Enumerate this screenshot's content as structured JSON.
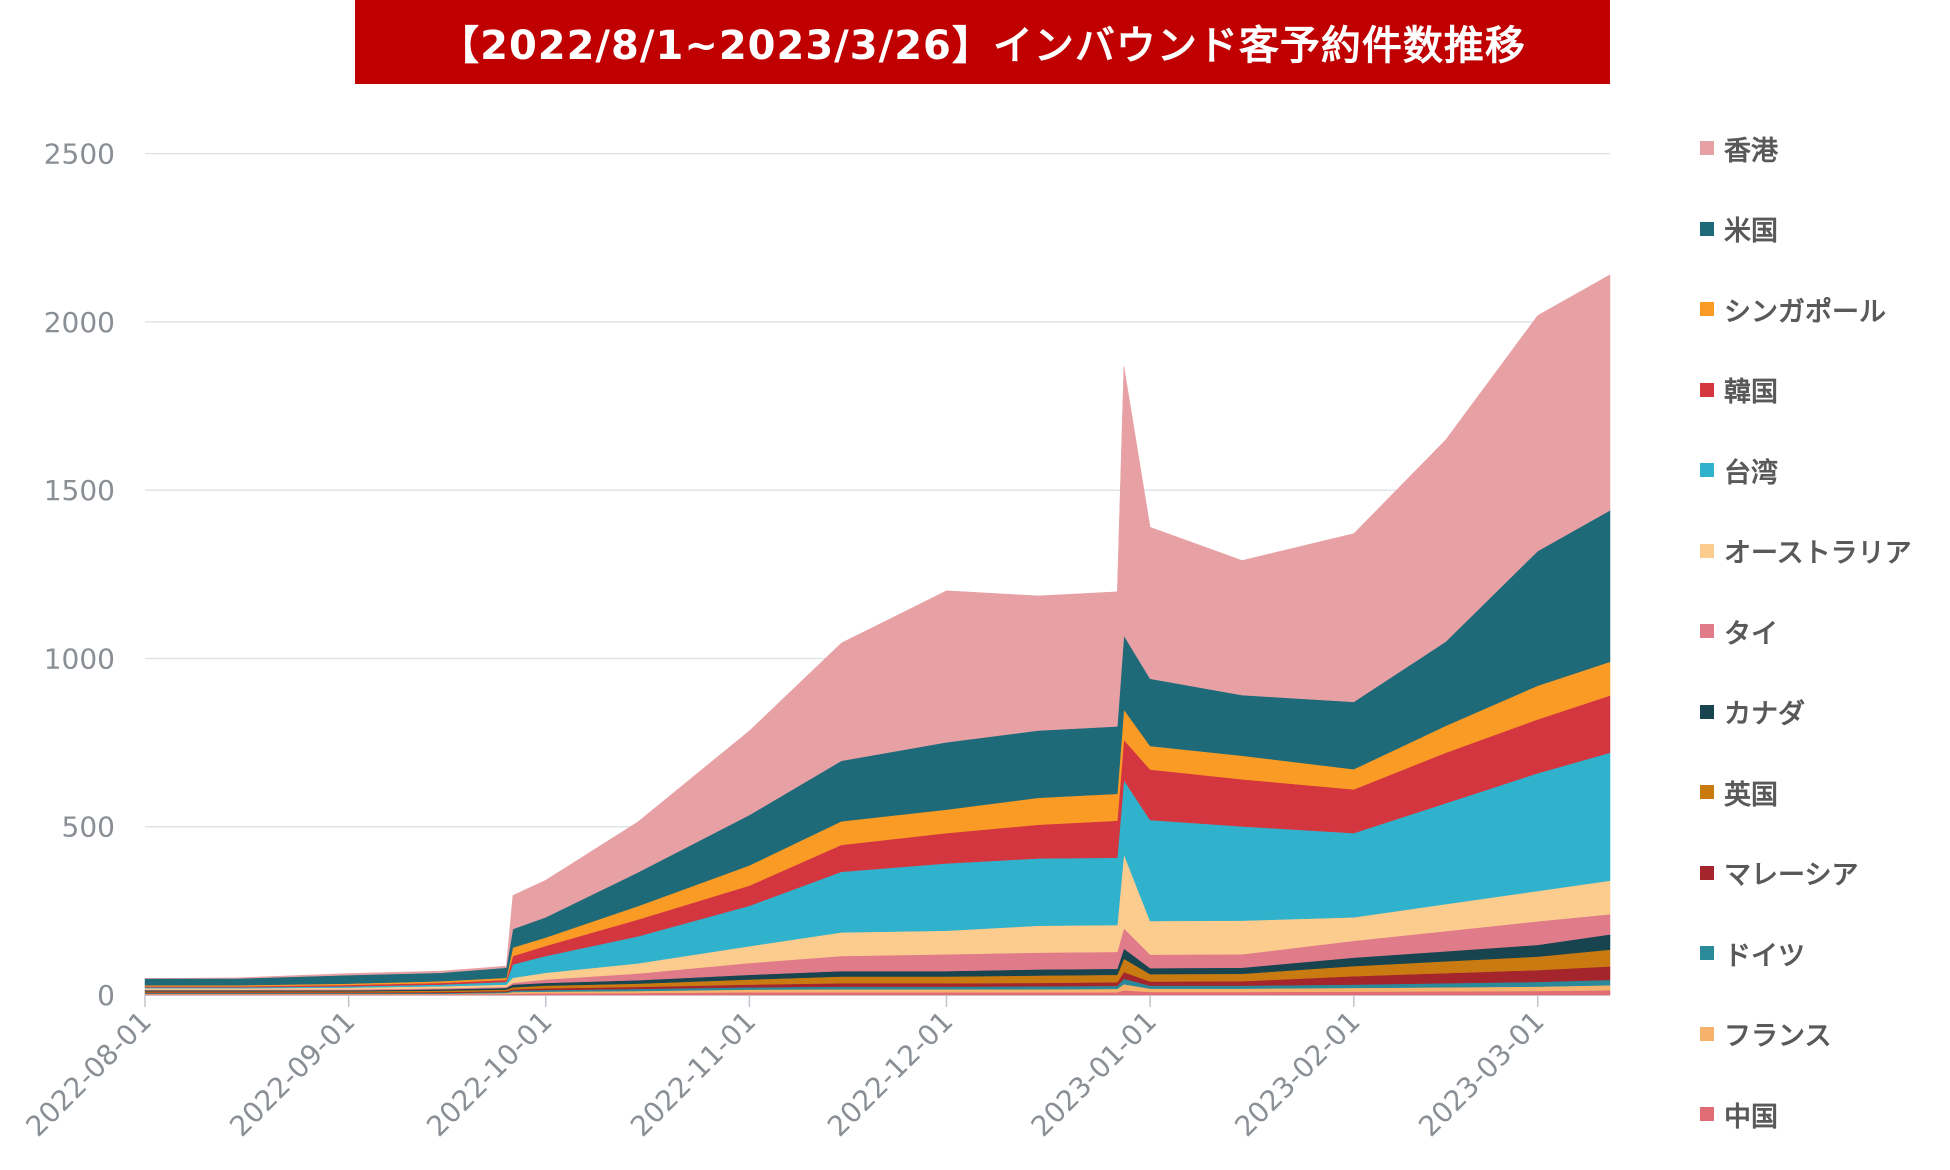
{
  "chart_data": {
    "type": "area",
    "stacked": true,
    "title": "【2022/8/1~2023/3/26】インバウンド客予約件数推移",
    "xlabel": "",
    "ylabel": "",
    "ylim": [
      0,
      2600
    ],
    "yticks": [
      0,
      500,
      1000,
      1500,
      2000,
      2500
    ],
    "xticks": [
      "2022-08-01",
      "2022-09-01",
      "2022-10-01",
      "2022-11-01",
      "2022-12-01",
      "2023-01-01",
      "2023-02-01",
      "2023-03-01"
    ],
    "x_range": [
      "2022-08-01",
      "2023-03-12"
    ],
    "grid": true,
    "legend_position": "right",
    "x": [
      "2022-08-01",
      "2022-08-15",
      "2022-09-01",
      "2022-09-15",
      "2022-09-25",
      "2022-09-26",
      "2022-10-01",
      "2022-10-15",
      "2022-11-01",
      "2022-11-15",
      "2022-12-01",
      "2022-12-15",
      "2022-12-27",
      "2022-12-28",
      "2023-01-01",
      "2023-01-15",
      "2023-02-01",
      "2023-02-15",
      "2023-03-01",
      "2023-03-12"
    ],
    "series": [
      {
        "name": "中国",
        "color": "#e06c75",
        "values": [
          2,
          2,
          2,
          2,
          3,
          4,
          5,
          6,
          8,
          8,
          8,
          8,
          8,
          14,
          9,
          9,
          10,
          11,
          12,
          14
        ]
      },
      {
        "name": "フランス",
        "color": "#f6b26b",
        "values": [
          2,
          2,
          2,
          2,
          3,
          5,
          5,
          6,
          8,
          9,
          9,
          9,
          10,
          18,
          10,
          10,
          11,
          12,
          13,
          15
        ]
      },
      {
        "name": "ドイツ",
        "color": "#2a8a9a",
        "values": [
          2,
          2,
          2,
          2,
          3,
          4,
          5,
          6,
          7,
          8,
          8,
          9,
          9,
          16,
          9,
          9,
          10,
          12,
          14,
          16
        ]
      },
      {
        "name": "マレーシア",
        "color": "#a4262c",
        "values": [
          2,
          2,
          2,
          3,
          3,
          4,
          5,
          6,
          8,
          10,
          10,
          10,
          11,
          20,
          12,
          13,
          25,
          30,
          35,
          40
        ]
      },
      {
        "name": "英国",
        "color": "#c97a10",
        "values": [
          3,
          3,
          3,
          4,
          4,
          6,
          8,
          10,
          15,
          20,
          20,
          22,
          22,
          40,
          22,
          22,
          30,
          35,
          40,
          50
        ]
      },
      {
        "name": "カナダ",
        "color": "#17444f",
        "values": [
          3,
          3,
          3,
          4,
          5,
          8,
          8,
          10,
          14,
          16,
          16,
          18,
          18,
          30,
          18,
          18,
          25,
          30,
          35,
          45
        ]
      },
      {
        "name": "タイ",
        "color": "#e07b8a",
        "values": [
          2,
          2,
          3,
          3,
          3,
          5,
          10,
          20,
          35,
          45,
          50,
          50,
          50,
          60,
          40,
          40,
          50,
          60,
          70,
          60
        ]
      },
      {
        "name": "オーストラリア",
        "color": "#fccc8e",
        "values": [
          4,
          4,
          5,
          6,
          7,
          15,
          20,
          30,
          50,
          70,
          70,
          80,
          80,
          220,
          100,
          100,
          70,
          80,
          90,
          100
        ]
      },
      {
        "name": "台湾",
        "color": "#31b2cc",
        "values": [
          3,
          3,
          4,
          5,
          8,
          40,
          50,
          80,
          120,
          180,
          200,
          200,
          200,
          220,
          300,
          280,
          250,
          300,
          350,
          380
        ]
      },
      {
        "name": "韓国",
        "color": "#d3363f",
        "values": [
          3,
          3,
          4,
          5,
          6,
          25,
          30,
          50,
          60,
          80,
          90,
          100,
          110,
          120,
          150,
          140,
          130,
          150,
          160,
          170
        ]
      },
      {
        "name": "シンガポール",
        "color": "#f99b25",
        "values": [
          3,
          3,
          4,
          5,
          6,
          25,
          25,
          40,
          60,
          70,
          70,
          80,
          80,
          90,
          70,
          70,
          60,
          80,
          100,
          100
        ]
      },
      {
        "name": "米国",
        "color": "#1f6a78",
        "values": [
          20,
          20,
          25,
          25,
          30,
          55,
          60,
          100,
          150,
          180,
          200,
          200,
          200,
          220,
          200,
          180,
          200,
          250,
          400,
          450
        ]
      },
      {
        "name": "香港",
        "color": "#e7a1a5",
        "values": [
          0,
          2,
          5,
          5,
          5,
          100,
          110,
          150,
          250,
          350,
          450,
          400,
          400,
          800,
          450,
          400,
          500,
          600,
          700,
          700
        ]
      }
    ]
  }
}
